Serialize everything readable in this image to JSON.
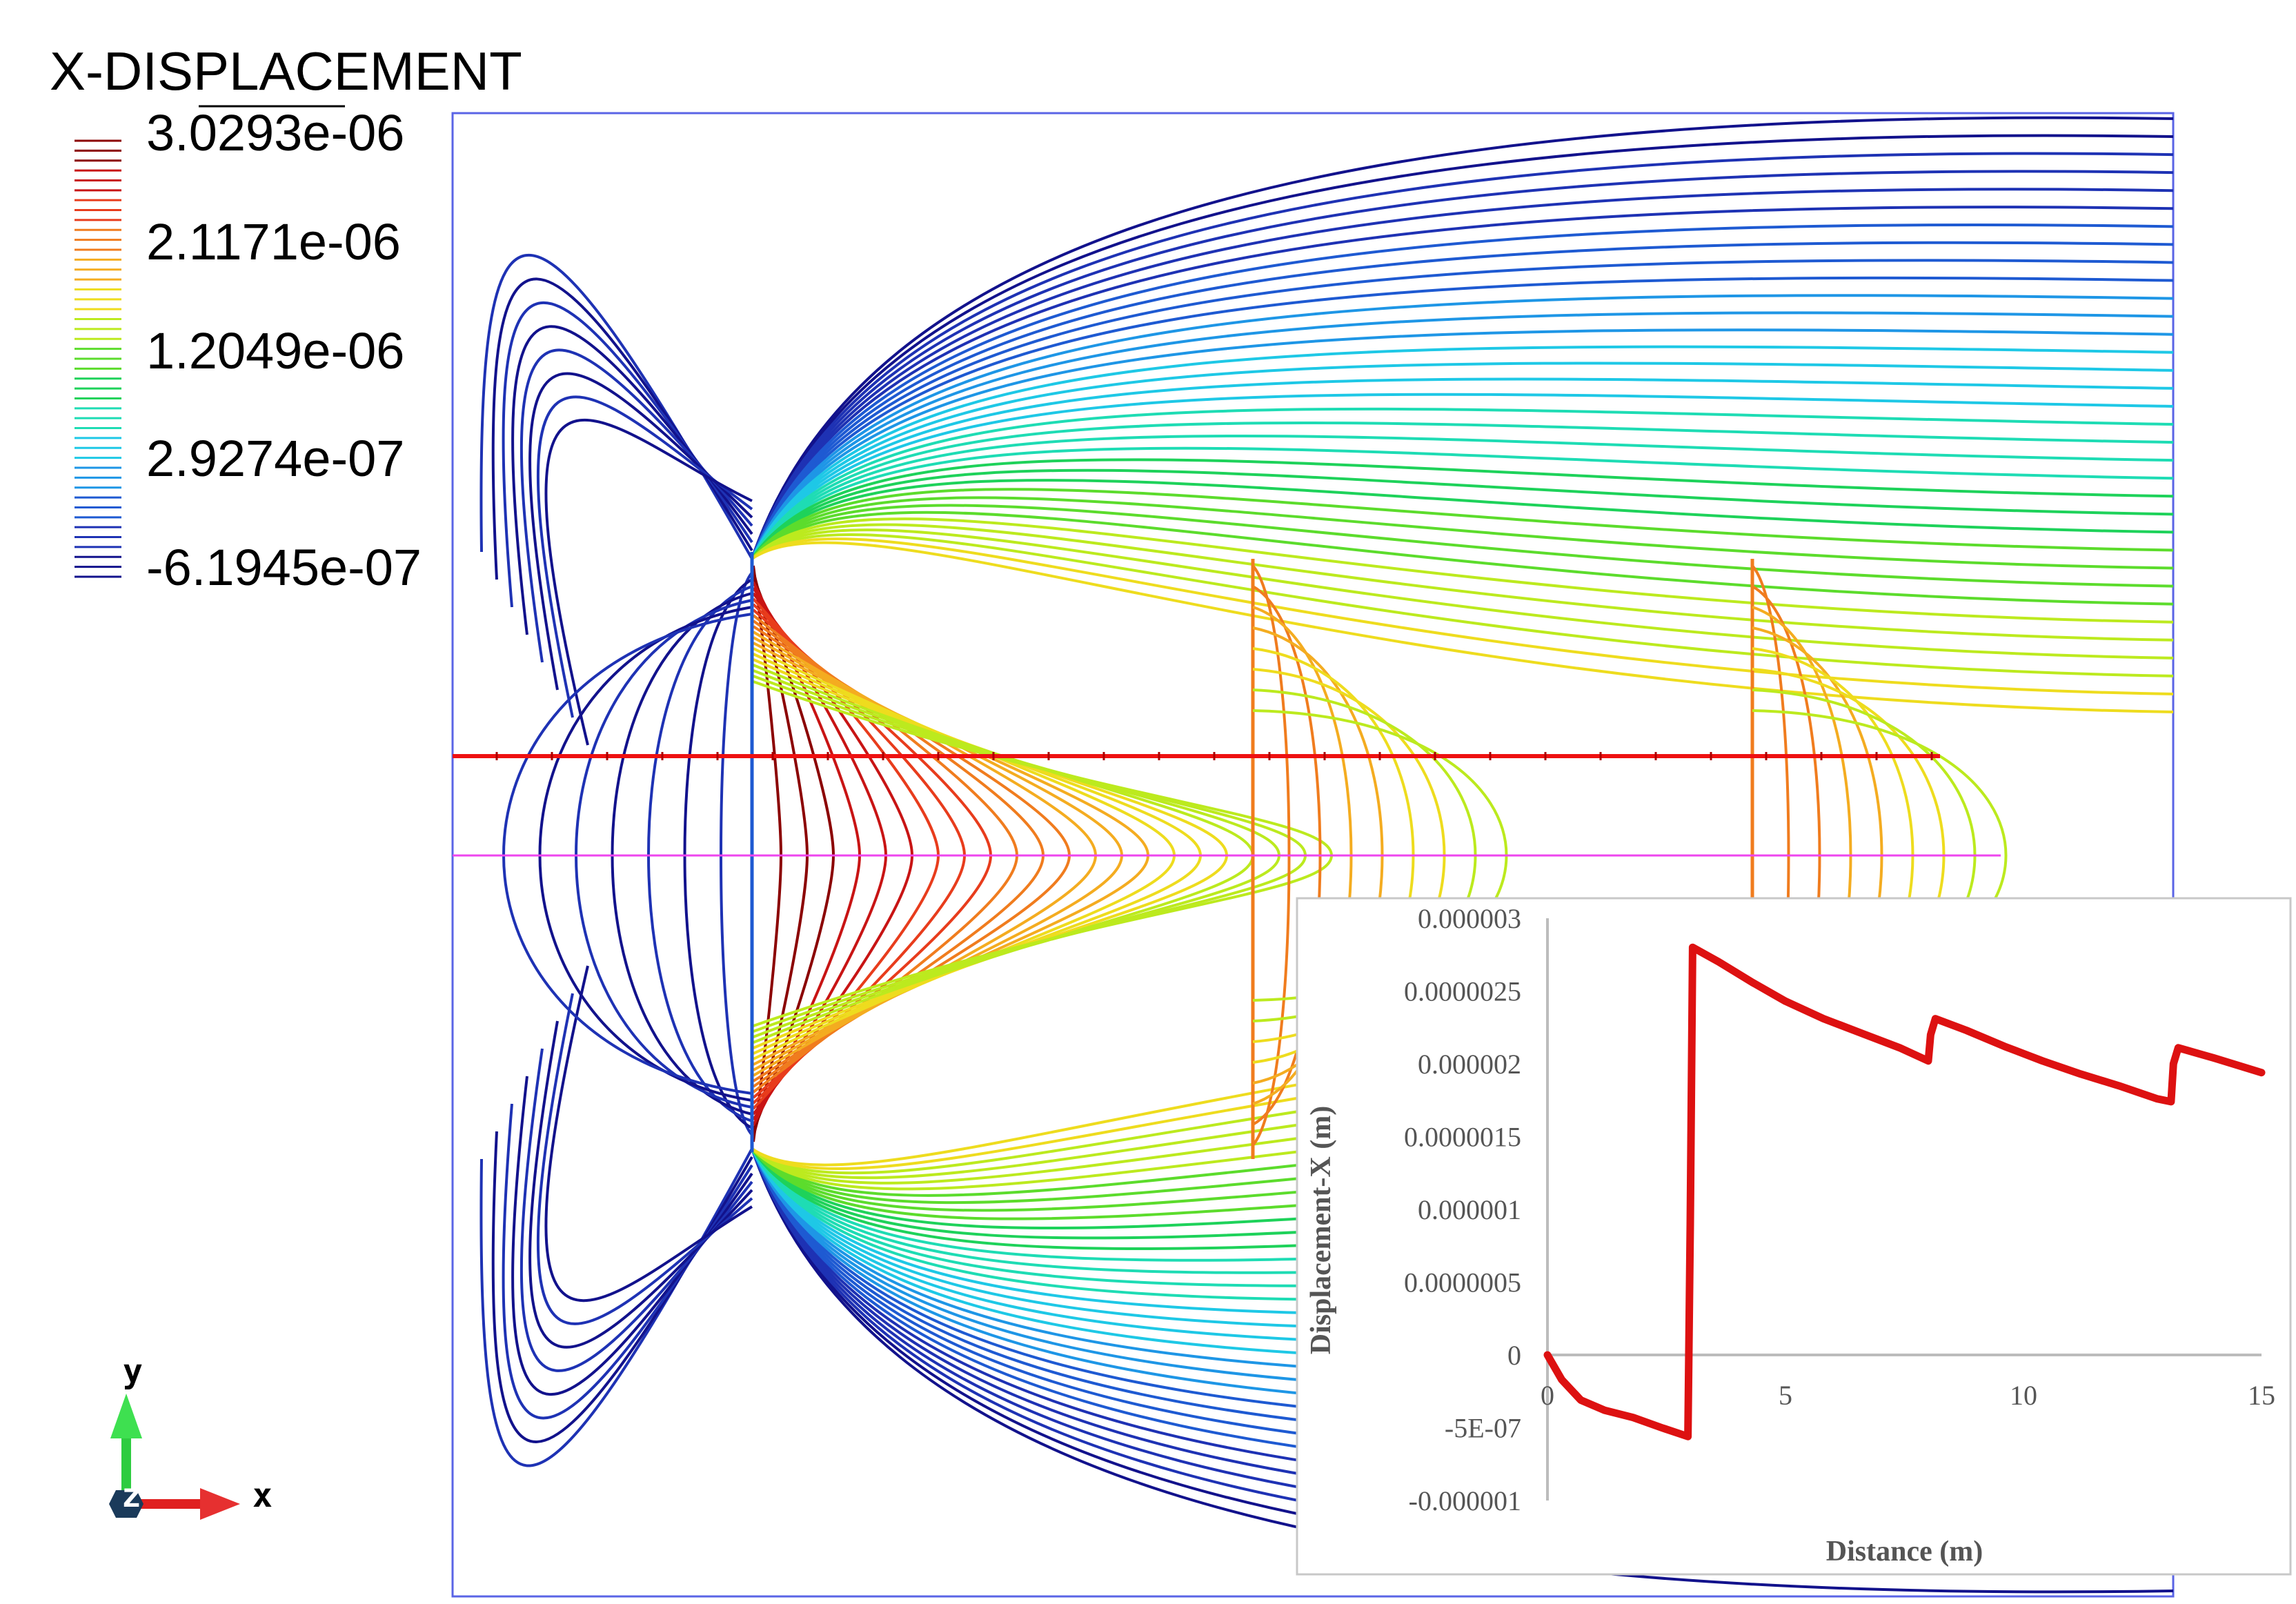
{
  "legend": {
    "title": "X-DISPLACEMENT",
    "labels": [
      "3.0293e-06",
      "2.1171e-06",
      "1.2049e-06",
      "2.9274e-07",
      "-6.1945e-07"
    ],
    "colors": [
      "#8b0000",
      "#c81414",
      "#e83c1c",
      "#f07c1e",
      "#f4ac20",
      "#eedc1e",
      "#bcea1e",
      "#5cdc2c",
      "#1ed25a",
      "#1edcb4",
      "#1ec8e6",
      "#1e96e6",
      "#1e5ad2",
      "#1e32b4",
      "#12128c"
    ]
  },
  "axes_triad": {
    "y": "y",
    "x": "x",
    "z": "z"
  },
  "chart_data": {
    "type": "line",
    "title": "",
    "xlabel": "Distance (m)",
    "ylabel": "Displacement-X (m)",
    "xlim": [
      0,
      15
    ],
    "ylim": [
      -1e-06,
      3e-06
    ],
    "xticks": [
      0,
      5,
      10,
      15
    ],
    "xtick_labels": [
      "0",
      "5",
      "10",
      "15"
    ],
    "yticks": [
      3e-06,
      2.5e-06,
      2e-06,
      1.5e-06,
      1e-06,
      5e-07,
      0,
      -5e-07,
      -1e-06
    ],
    "ytick_labels": [
      "0.000003",
      "0.0000025",
      "0.000002",
      "0.0000015",
      "0.000001",
      "0.0000005",
      "0",
      "-5E-07",
      "-0.000001"
    ],
    "series_color": "#dd1111",
    "series": [
      {
        "x": [
          0,
          0.3,
          0.7,
          1.2,
          1.8,
          2.4,
          2.95,
          3.0,
          3.05,
          3.6,
          4.3,
          5.0,
          5.8,
          6.6,
          7.4,
          8.0,
          8.05,
          8.15,
          8.8,
          9.6,
          10.4,
          11.2,
          12.0,
          12.8,
          13.1,
          13.15,
          13.25,
          14.0,
          15.0
        ],
        "y": [
          0.0,
          -1.7e-07,
          -3.1e-07,
          -3.8e-07,
          -4.3e-07,
          -5e-07,
          -5.6e-07,
          9e-07,
          2.8e-06,
          2.7e-06,
          2.56e-06,
          2.43e-06,
          2.31e-06,
          2.21e-06,
          2.11e-06,
          2.02e-06,
          2.2e-06,
          2.31e-06,
          2.23e-06,
          2.12e-06,
          2.02e-06,
          1.93e-06,
          1.85e-06,
          1.76e-06,
          1.74e-06,
          2e-06,
          2.11e-06,
          2.04e-06,
          1.94e-06
        ]
      }
    ],
    "legend": "none",
    "grid": false
  }
}
